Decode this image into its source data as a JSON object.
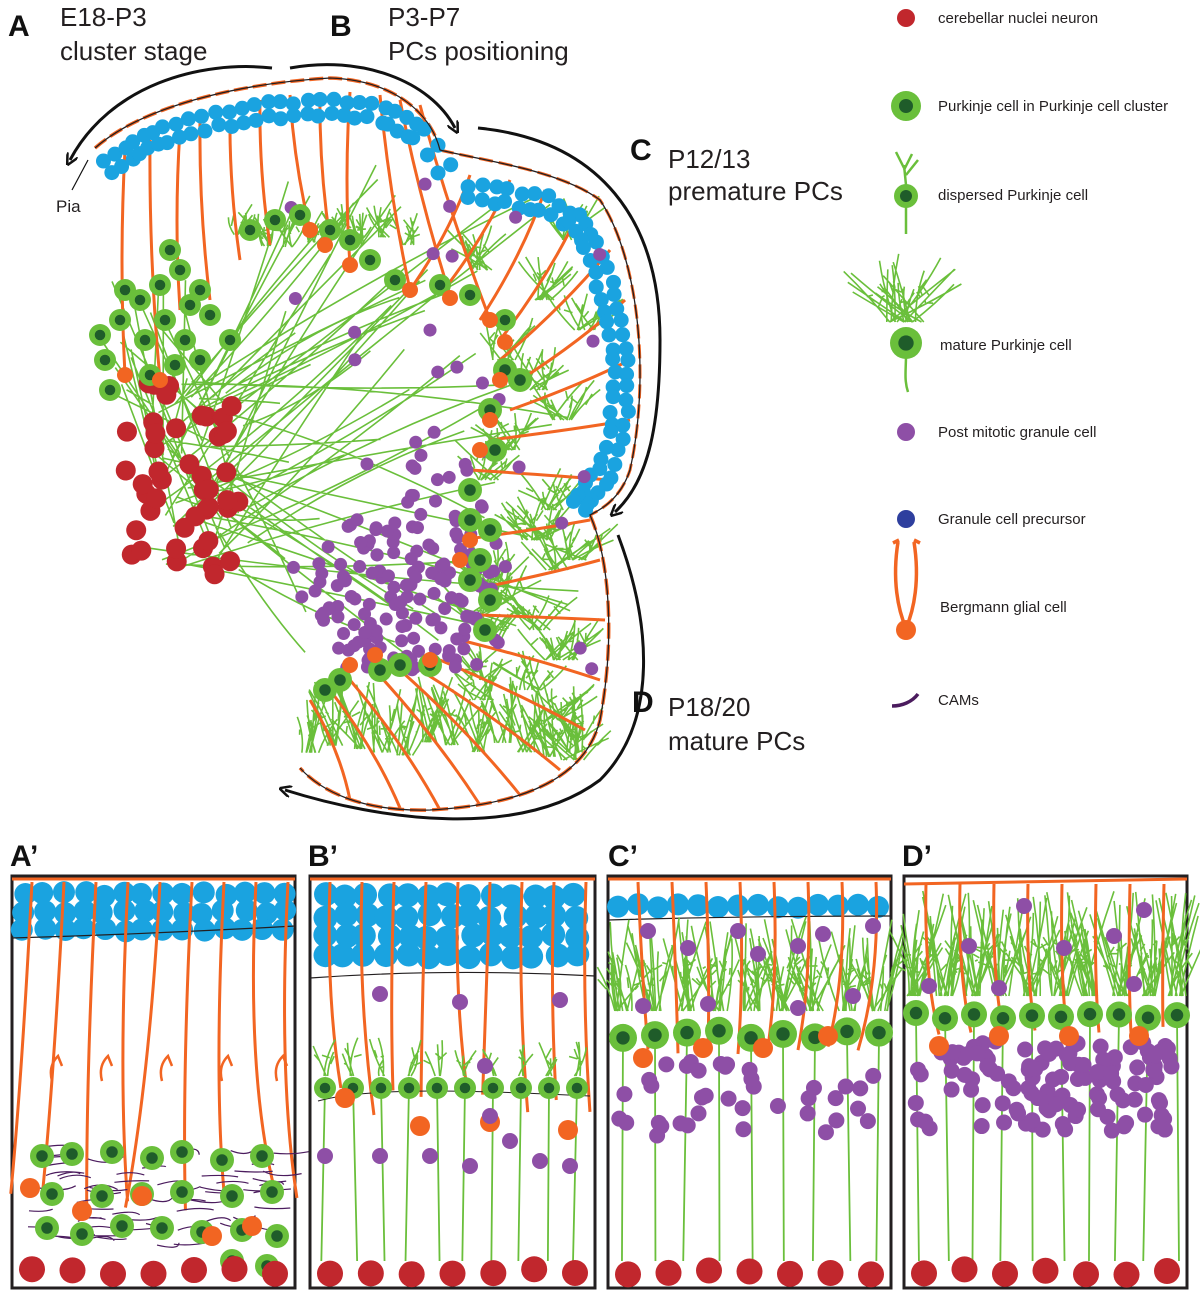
{
  "panels": {
    "A": {
      "letter": "A",
      "line1": "E18-P3",
      "line2": "cluster stage"
    },
    "B": {
      "letter": "B",
      "line1": "P3-P7",
      "line2": "PCs positioning"
    },
    "C": {
      "letter": "C",
      "line1": "P12/13",
      "line2": "premature PCs"
    },
    "D": {
      "letter": "D",
      "line1": "P18/20",
      "line2": "mature PCs"
    },
    "pia_label": "Pia"
  },
  "bottom_panels": [
    {
      "letter": "A’"
    },
    {
      "letter": "B’"
    },
    {
      "letter": "C’"
    },
    {
      "letter": "D’"
    }
  ],
  "legend": [
    {
      "label": "cerebellar nuclei neuron",
      "icon": "red-dot",
      "color": "#c1272d"
    },
    {
      "label": "Purkinje cell in Purkinje cell cluster",
      "icon": "green-cell",
      "color": "#6abf3b"
    },
    {
      "label": "dispersed Purkinje cell",
      "icon": "dispersed-pc",
      "color": "#6abf3b"
    },
    {
      "label": "mature Purkinje cell",
      "icon": "mature-pc",
      "color": "#6abf3b"
    },
    {
      "label": "Post mitotic granule cell",
      "icon": "purple-dot",
      "color": "#8e4fa6"
    },
    {
      "label": "Granule cell precursor",
      "icon": "blue-dot",
      "color": "#2e3f9e"
    },
    {
      "label": "Bergmann glial cell",
      "icon": "bergmann-glia",
      "color": "#f26522"
    },
    {
      "label": "CAMs",
      "icon": "cam-arc",
      "color": "#4b1c5e"
    }
  ],
  "colors": {
    "blue": "#1aa3e0",
    "green": "#6abf3b",
    "darkgreen": "#1f5c2a",
    "orange": "#f26522",
    "red": "#c1272d",
    "purple": "#8e4fa6",
    "cam": "#4b1c5e"
  }
}
